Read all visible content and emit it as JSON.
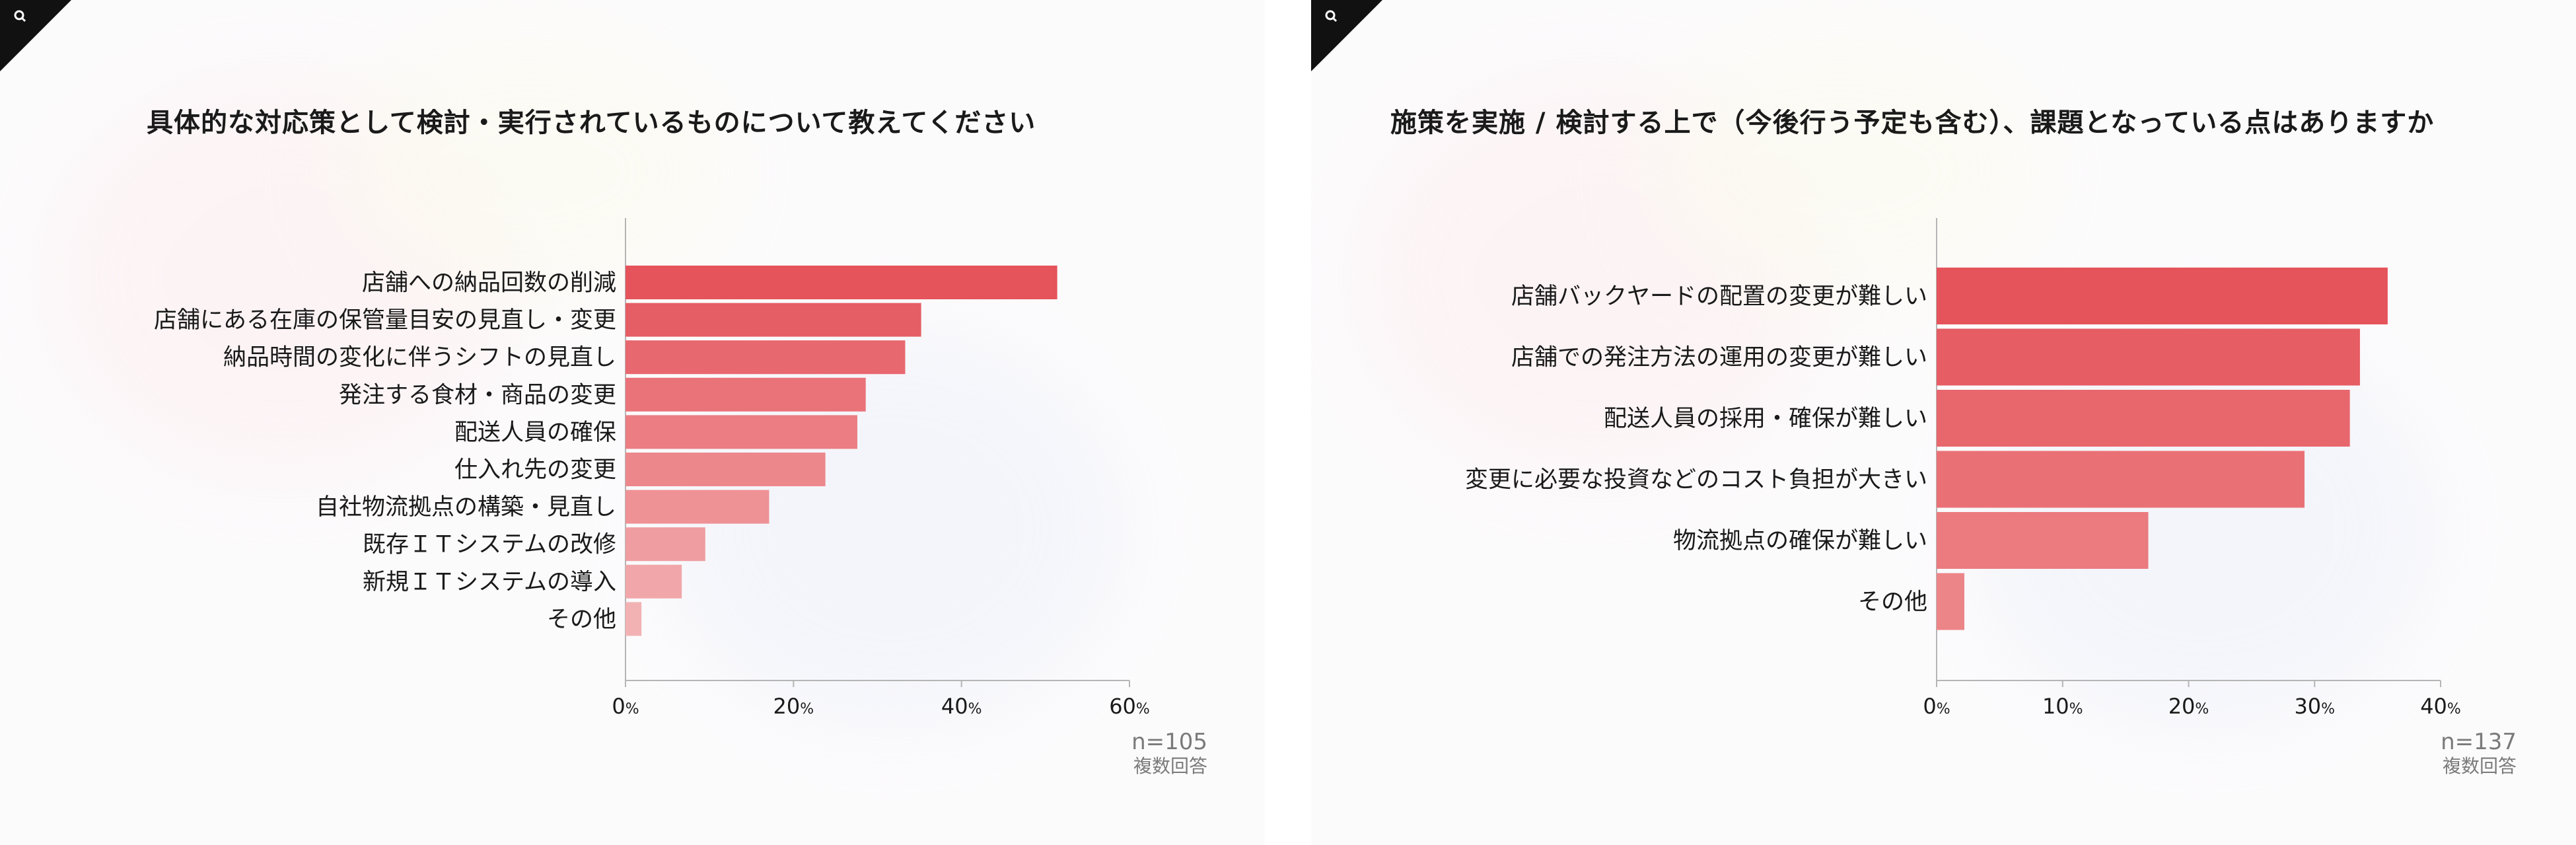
{
  "left": {
    "title": "具体的な対応策として検討・実行されているものについて教えてください",
    "footnote": {
      "n": "n=105",
      "multi": "複数回答"
    }
  },
  "right": {
    "title": "施策を実施 / 検討する上で（今後行う予定も含む）、課題となっている点はありますか",
    "footnote": {
      "n": "n=137",
      "multi": "複数回答"
    }
  },
  "chart_data": [
    {
      "type": "bar",
      "orientation": "horizontal",
      "categories": [
        "店舗への納品回数の削減",
        "店舗にある在庫の保管量目安の見直し・変更",
        "納品時間の変化に伴うシフトの見直し",
        "発注する食材・商品の変更",
        "配送人員の確保",
        "仕入れ先の変更",
        "自社物流拠点の構築・見直し",
        "既存ＩＴシステムの改修",
        "新規ＩＴシステムの導入",
        "その他"
      ],
      "values": [
        51.4,
        35.2,
        33.3,
        28.6,
        27.6,
        23.8,
        17.1,
        9.5,
        6.7,
        1.9
      ],
      "xlim": [
        0,
        60
      ],
      "xticks": [
        {
          "v": 0,
          "label": "0"
        },
        {
          "v": 20,
          "label": "20"
        },
        {
          "v": 40,
          "label": "40"
        },
        {
          "v": 60,
          "label": "60"
        }
      ],
      "tick_unit": "%",
      "grid": false,
      "colors": {
        "start": "#e5535b",
        "end": "#f2b2b4"
      }
    },
    {
      "type": "bar",
      "orientation": "horizontal",
      "categories": [
        "店舗バックヤードの配置の変更が難しい",
        "店舗での発注方法の運用の変更が難しい",
        "配送人員の採用・確保が難しい",
        "変更に必要な投資などのコスト負担が大きい",
        "物流拠点の確保が難しい",
        "その他"
      ],
      "values": [
        35.8,
        33.6,
        32.8,
        29.2,
        16.8,
        2.2
      ],
      "xlim": [
        0,
        40
      ],
      "xticks": [
        {
          "v": 0,
          "label": "0"
        },
        {
          "v": 10,
          "label": "10"
        },
        {
          "v": 20,
          "label": "20"
        },
        {
          "v": 30,
          "label": "30"
        },
        {
          "v": 40,
          "label": "40"
        }
      ],
      "tick_unit": "%",
      "grid": false,
      "colors": {
        "start": "#e5535b",
        "end": "#ec8588"
      }
    }
  ]
}
